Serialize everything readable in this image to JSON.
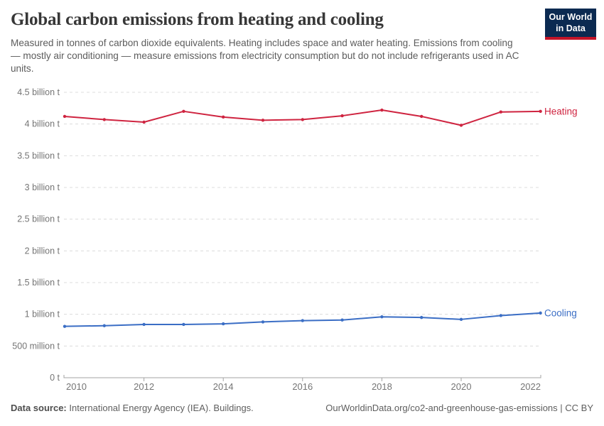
{
  "header": {
    "title": "Global carbon emissions from heating and cooling",
    "subtitle": "Measured in tonnes of carbon dioxide equivalents. Heating includes space and water heating. Emissions from cooling — mostly air conditioning — measure emissions from electricity consumption but do not include refrigerants used in AC units.",
    "logo": {
      "line1": "Our World",
      "line2": "in Data",
      "bg_color": "#0b2a51",
      "stripe_color": "#c31428"
    }
  },
  "chart_data": {
    "type": "line",
    "title": "Global carbon emissions from heating and cooling",
    "unit": "tonnes of CO2 equivalents",
    "x": [
      2010,
      2011,
      2012,
      2013,
      2014,
      2015,
      2016,
      2017,
      2018,
      2019,
      2020,
      2021,
      2022
    ],
    "series": [
      {
        "name": "Heating",
        "color": "#cf2440",
        "values": [
          4.12,
          4.07,
          4.03,
          4.2,
          4.11,
          4.06,
          4.07,
          4.13,
          4.22,
          4.12,
          3.98,
          4.19,
          4.2
        ]
      },
      {
        "name": "Cooling",
        "color": "#3b6ec5",
        "values": [
          0.81,
          0.82,
          0.84,
          0.84,
          0.85,
          0.88,
          0.9,
          0.91,
          0.96,
          0.95,
          0.92,
          0.98,
          1.02
        ]
      }
    ],
    "values_unit_scale": "billions of tonnes",
    "ylim": [
      0,
      4.5
    ],
    "yticks": [
      {
        "v": 0,
        "label": "0 t"
      },
      {
        "v": 0.5,
        "label": "500 million t"
      },
      {
        "v": 1,
        "label": "1 billion t"
      },
      {
        "v": 1.5,
        "label": "1.5 billion t"
      },
      {
        "v": 2,
        "label": "2 billion t"
      },
      {
        "v": 2.5,
        "label": "2.5 billion t"
      },
      {
        "v": 3,
        "label": "3 billion t"
      },
      {
        "v": 3.5,
        "label": "3.5 billion t"
      },
      {
        "v": 4,
        "label": "4 billion t"
      },
      {
        "v": 4.5,
        "label": "4.5 billion t"
      }
    ],
    "xticks": [
      2010,
      2012,
      2014,
      2016,
      2018,
      2020,
      2022
    ],
    "grid": "horizontal-dashed",
    "legend": "series-end-labels",
    "grid_color": "#dcdcdc",
    "axis_color": "#a3a3a3",
    "tick_label_color": "#757575"
  },
  "footer": {
    "source_label": "Data source:",
    "source_text": "International Energy Agency (IEA). Buildings.",
    "credit": "OurWorldinData.org/co2-and-greenhouse-gas-emissions | CC BY"
  }
}
